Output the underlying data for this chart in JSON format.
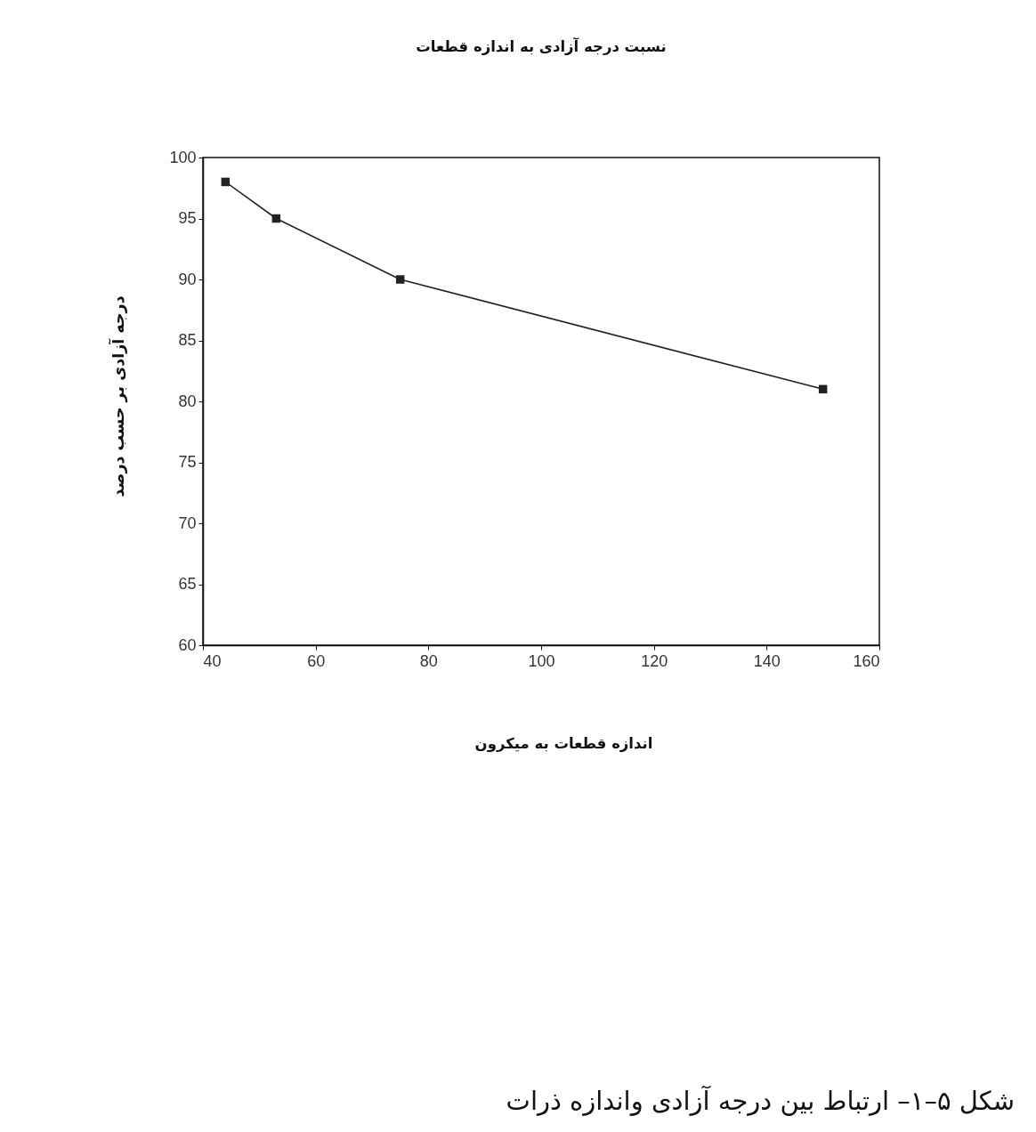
{
  "chart_data": {
    "type": "line",
    "title": "نسبت درجه آزادی به اندازه قطعات",
    "xlabel": "اندازه قطعات به میکرون",
    "ylabel": "درجه آزادی بر حسب درصد",
    "x": [
      44,
      53,
      75,
      150
    ],
    "series": [
      {
        "color": "#222222",
        "values": [
          98,
          95,
          90,
          81
        ]
      }
    ],
    "xlim": [
      40,
      160
    ],
    "xticks": [
      40,
      60,
      80,
      100,
      120,
      140,
      160
    ],
    "ylim": [
      60,
      100
    ],
    "yticks": [
      60,
      65,
      70,
      75,
      80,
      85,
      90,
      95,
      100
    ],
    "grid": false,
    "marker": "square",
    "line_style": "solid",
    "annotations": [
      "شکل ۵–۱– ارتباط بین درجه آزادی واندازه ذرات"
    ]
  }
}
